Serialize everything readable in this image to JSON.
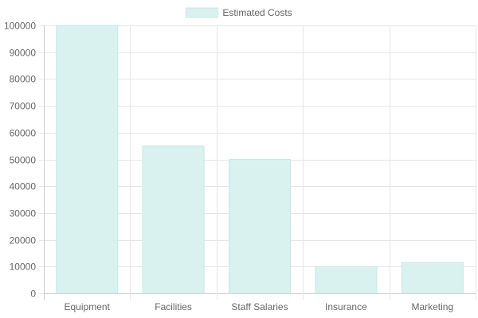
{
  "chart_data": {
    "type": "bar",
    "categories": [
      "Equipment",
      "Facilities",
      "Staff Salaries",
      "Insurance",
      "Marketing"
    ],
    "series": [
      {
        "name": "Estimated Costs",
        "values": [
          100000,
          55000,
          50000,
          10000,
          11500
        ]
      }
    ],
    "ylim": [
      0,
      100000
    ],
    "yticks": [
      0,
      10000,
      20000,
      30000,
      40000,
      50000,
      60000,
      70000,
      80000,
      90000,
      100000
    ],
    "grid": true,
    "legend_position": "top",
    "colors": {
      "bar_fill": "#d9f1ef",
      "bar_stroke": "#c6e9e5",
      "grid": "#e6e6e6",
      "axis": "#cccccc",
      "text": "#666666"
    }
  }
}
